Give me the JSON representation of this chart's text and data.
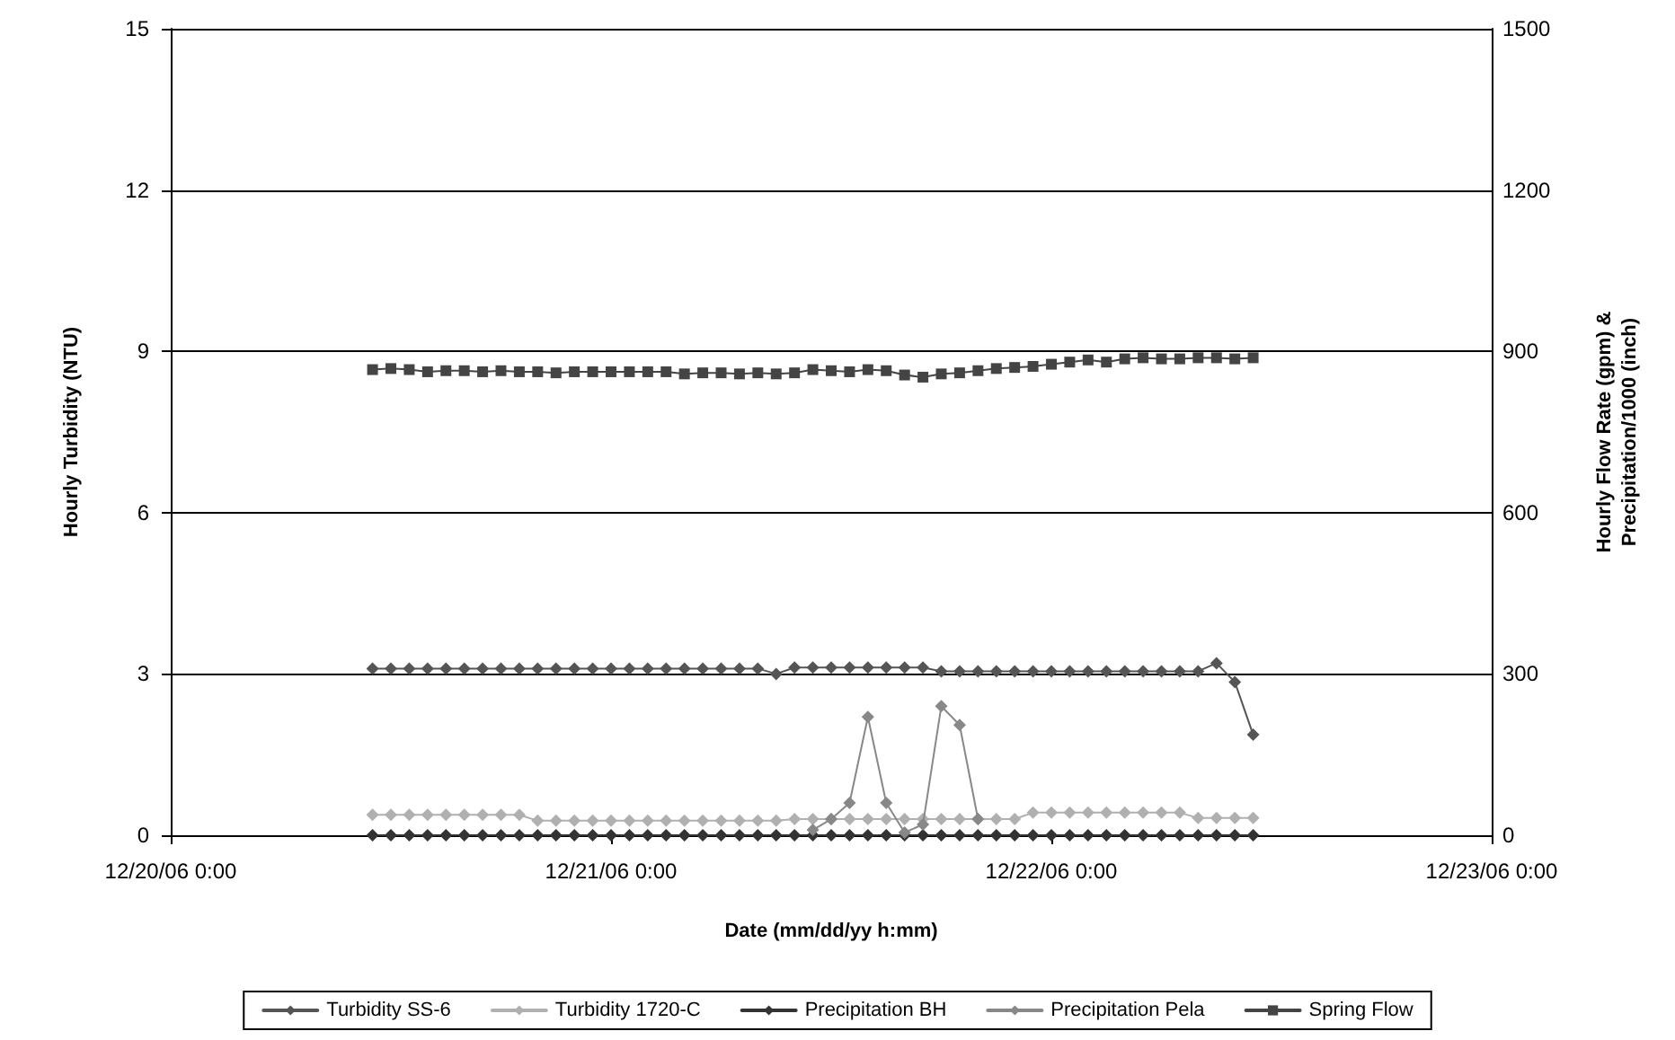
{
  "chart_data": {
    "type": "line",
    "xlabel": "Date (mm/dd/yy h:mm)",
    "ylabel": "Hourly Turbidity (NTU)",
    "y2label": "Hourly Flow Rate (gpm) &\nPrecipitation/1000 (inch)",
    "x": [
      "--12-20T11:00",
      "--12-20T12:00",
      "--12-20T13:00",
      "--12-20T14:00",
      "--12-20T15:00",
      "--12-20T16:00",
      "--12-20T17:00",
      "--12-20T18:00",
      "--12-20T19:00",
      "--12-20T20:00",
      "--12-20T21:00",
      "--12-20T22:00",
      "--12-20T23:00",
      "--12-21T00:00",
      "--12-21T01:00",
      "--12-21T02:00",
      "--12-21T03:00",
      "--12-21T04:00",
      "--12-21T05:00",
      "--12-21T06:00",
      "--12-21T07:00",
      "--12-21T08:00",
      "--12-21T09:00",
      "--12-21T10:00",
      "--12-21T11:00",
      "--12-21T12:00",
      "--12-21T13:00",
      "--12-21T14:00",
      "--12-21T15:00",
      "--12-21T16:00",
      "--12-21T17:00",
      "--12-21T18:00",
      "--12-21T19:00",
      "--12-21T20:00",
      "--12-21T21:00",
      "--12-21T22:00",
      "--12-21T23:00",
      "--12-22T00:00",
      "--12-22T01:00",
      "--12-22T02:00",
      "--12-22T03:00",
      "--12-22T04:00",
      "--12-22T05:00",
      "--12-22T06:00",
      "--12-22T07:00",
      "--12-22T08:00",
      "--12-22T09:00",
      "--12-22T10:00",
      "--12-22T11:00"
    ],
    "xlim": [
      "--12-20T00:00",
      "--12-23T00:00"
    ],
    "xticks": [
      {
        "value": "--12-20T00:00",
        "label": "12/20/06 0:00"
      },
      {
        "value": "--12-21T00:00",
        "label": "12/21/06 0:00"
      },
      {
        "value": "--12-22T00:00",
        "label": "12/22/06 0:00"
      },
      {
        "value": "--12-23T00:00",
        "label": "12/23/06 0:00"
      }
    ],
    "ylim": [
      0,
      15
    ],
    "yticks": [
      0,
      3,
      6,
      9,
      12,
      15
    ],
    "y2lim": [
      0,
      1500
    ],
    "y2ticks": [
      0,
      300,
      600,
      900,
      1200,
      1500
    ],
    "grid": "y",
    "legend": "bottom",
    "series": [
      {
        "name": "Turbidity SS-6",
        "color": "#555555",
        "marker": "diamond",
        "values": [
          3.1,
          3.1,
          3.1,
          3.1,
          3.1,
          3.1,
          3.1,
          3.1,
          3.1,
          3.1,
          3.1,
          3.1,
          3.1,
          3.1,
          3.1,
          3.1,
          3.1,
          3.1,
          3.1,
          3.1,
          3.1,
          3.1,
          3.0,
          3.12,
          3.12,
          3.12,
          3.12,
          3.12,
          3.12,
          3.12,
          3.12,
          3.05,
          3.05,
          3.05,
          3.05,
          3.05,
          3.05,
          3.05,
          3.05,
          3.05,
          3.05,
          3.05,
          3.05,
          3.05,
          3.05,
          3.05,
          3.2,
          2.85,
          1.87
        ]
      },
      {
        "name": "Turbidity 1720-C",
        "color": "#b0b0b0",
        "marker": "diamond",
        "values": [
          0.38,
          0.38,
          0.38,
          0.38,
          0.38,
          0.38,
          0.38,
          0.38,
          0.38,
          0.27,
          0.27,
          0.27,
          0.27,
          0.27,
          0.27,
          0.27,
          0.27,
          0.27,
          0.27,
          0.27,
          0.27,
          0.27,
          0.27,
          0.3,
          0.3,
          0.3,
          0.3,
          0.3,
          0.3,
          0.3,
          0.3,
          0.3,
          0.3,
          0.3,
          0.3,
          0.3,
          0.42,
          0.42,
          0.42,
          0.42,
          0.42,
          0.42,
          0.42,
          0.42,
          0.42,
          0.32,
          0.32,
          0.32,
          0.32
        ]
      },
      {
        "name": "Precipitation BH",
        "color": "#333333",
        "marker": "diamond",
        "axis": "y2",
        "values": [
          0,
          0,
          0,
          0,
          0,
          0,
          0,
          0,
          0,
          0,
          0,
          0,
          0,
          0,
          0,
          0,
          0,
          0,
          0,
          0,
          0,
          0,
          0,
          0,
          0,
          0,
          0,
          0,
          0,
          0,
          0,
          0,
          0,
          0,
          0,
          0,
          0,
          0,
          0,
          0,
          0,
          0,
          0,
          0,
          0,
          0,
          0,
          0,
          0
        ]
      },
      {
        "name": "Precipitation Pela",
        "color": "#888888",
        "marker": "diamond",
        "axis": "y2",
        "values": [
          null,
          null,
          null,
          null,
          null,
          null,
          null,
          null,
          null,
          null,
          null,
          null,
          null,
          null,
          null,
          null,
          null,
          null,
          null,
          null,
          null,
          null,
          null,
          null,
          10,
          30,
          60,
          220,
          60,
          5,
          20,
          240,
          205,
          30,
          null,
          null,
          null,
          null,
          null,
          null,
          null,
          null,
          null,
          null,
          null,
          null,
          null,
          null,
          null
        ]
      },
      {
        "name": "Spring Flow",
        "color": "#444444",
        "marker": "square",
        "axis": "y2",
        "values": [
          866,
          868,
          866,
          862,
          864,
          864,
          862,
          864,
          862,
          862,
          860,
          862,
          862,
          862,
          862,
          862,
          862,
          858,
          860,
          860,
          858,
          860,
          858,
          860,
          866,
          864,
          862,
          866,
          864,
          856,
          852,
          858,
          860,
          864,
          868,
          870,
          872,
          876,
          880,
          884,
          880,
          886,
          888,
          886,
          886,
          888,
          888,
          886,
          888
        ]
      }
    ]
  }
}
